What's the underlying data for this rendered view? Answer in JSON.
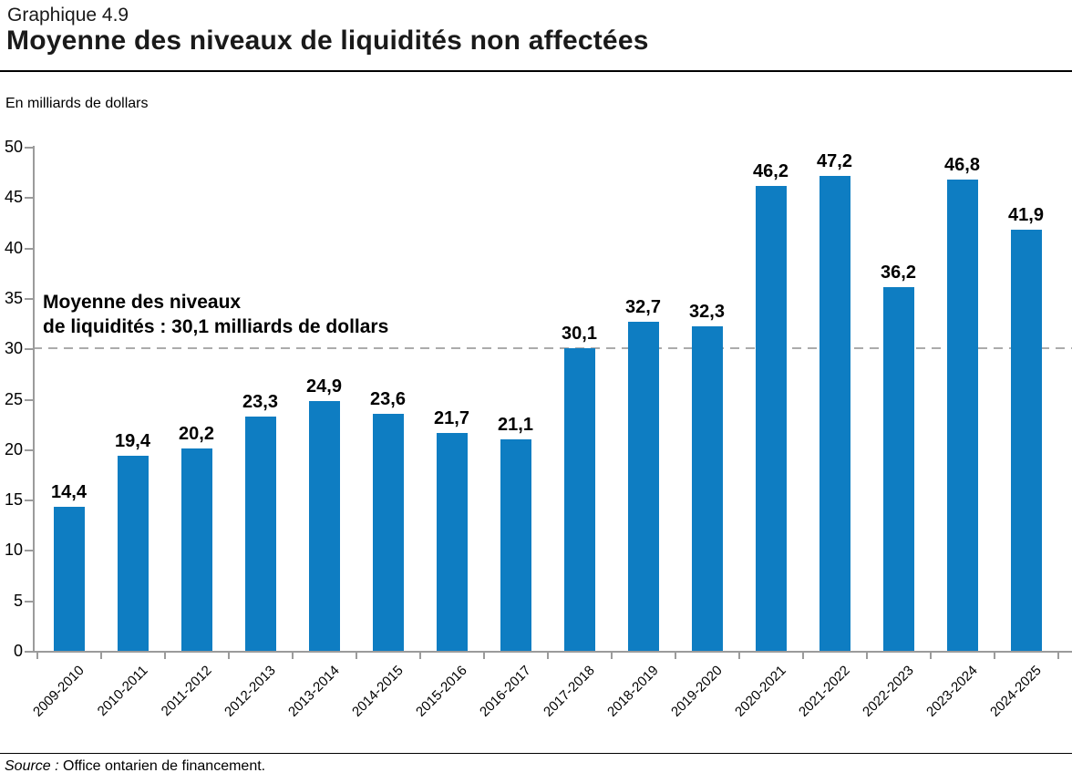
{
  "header": {
    "eyebrow": "Graphique 4.9",
    "title": "Moyenne des niveaux de liquidités non affectées"
  },
  "source": {
    "prefix": "Source :",
    "text": "Office ontarien de financement."
  },
  "chart_data": {
    "type": "bar",
    "title": "Moyenne des niveaux de liquidités non affectées",
    "ylabel": "En milliards de dollars",
    "xlabel": "",
    "categories": [
      "2009-2010",
      "2010-2011",
      "2011-2012",
      "2012-2013",
      "2013-2014",
      "2014-2015",
      "2015-2016",
      "2016-2017",
      "2017-2018",
      "2018-2019",
      "2019-2020",
      "2020-2021",
      "2021-2022",
      "2022-2023",
      "2023-2024",
      "2024-2025"
    ],
    "values": [
      14.4,
      19.4,
      20.2,
      23.3,
      24.9,
      23.6,
      21.7,
      21.1,
      30.1,
      32.7,
      32.3,
      46.2,
      47.2,
      36.2,
      46.8,
      41.9
    ],
    "value_labels": [
      "14,4",
      "19,4",
      "20,2",
      "23,3",
      "24,9",
      "23,6",
      "21,7",
      "21,1",
      "30,1",
      "32,7",
      "32,3",
      "46,2",
      "47,2",
      "36,2",
      "46,8",
      "41,9"
    ],
    "ylim": [
      0,
      50
    ],
    "yticks": [
      0,
      5,
      10,
      15,
      20,
      25,
      30,
      35,
      40,
      45,
      50
    ],
    "grid": false,
    "legend": "none",
    "bar_color": "#0E7DC2",
    "axis_color": "#9B9B9B",
    "average_line": {
      "value": 30.1,
      "style": "dashed",
      "color": "#ABABAB",
      "label_line1": "Moyenne des niveaux",
      "label_line2": "de liquidités : 30,1 milliards de dollars"
    }
  }
}
